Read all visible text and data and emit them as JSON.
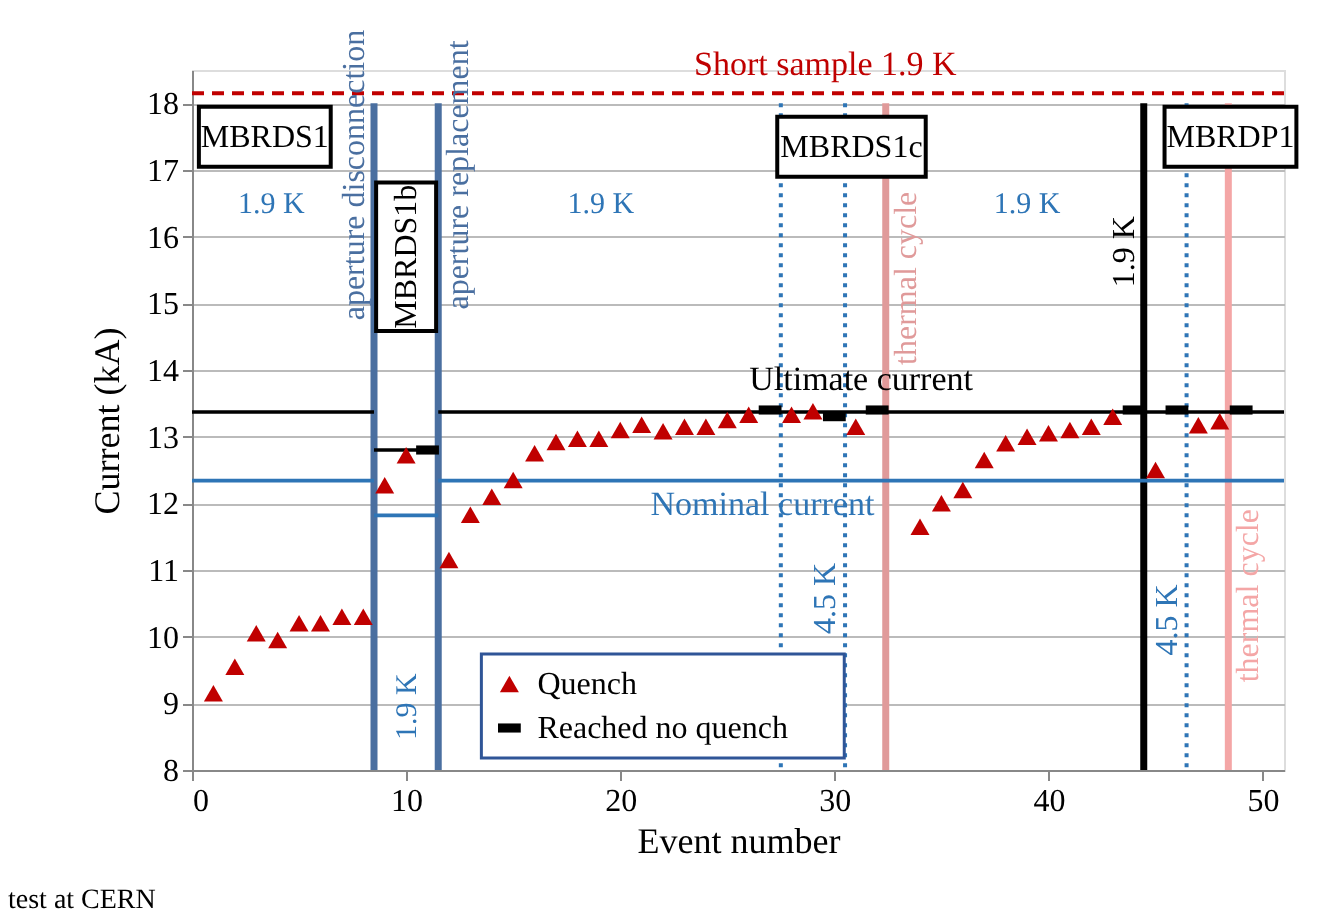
{
  "chart_data": {
    "type": "scatter",
    "xlabel": "Event number",
    "ylabel": "Current (kA)",
    "xlim": [
      0,
      51
    ],
    "ylim": [
      8,
      18.5
    ],
    "xticks": [
      0,
      10,
      20,
      30,
      40,
      50
    ],
    "yticks": [
      8,
      9,
      10,
      11,
      12,
      13,
      14,
      15,
      16,
      17,
      18
    ],
    "grid": "y",
    "legend": "bottom",
    "series": [
      {
        "name": "Ultimate current",
        "type": "line",
        "color": "#000000",
        "x": [
          0,
          8.5,
          10,
          11.5,
          51
        ],
        "values": [
          13.37,
          13.37,
          null,
          13.37,
          13.37
        ]
      },
      {
        "type": "line",
        "color": "#000000",
        "x": [
          8.5,
          11.5
        ],
        "values": [
          12.8,
          12.8
        ]
      },
      {
        "name": "Nominal current",
        "type": "line",
        "color": "#2e75b6",
        "x": [
          0,
          8.5,
          10,
          11.5,
          51
        ],
        "values": [
          12.34,
          12.34,
          null,
          12.34,
          12.34
        ]
      },
      {
        "type": "line",
        "color": "#2e75b6",
        "x": [
          8.5,
          11.5
        ],
        "values": [
          11.82,
          11.82
        ]
      },
      {
        "name": "Quench",
        "marker": "triangle",
        "color": "#c00000",
        "x": [
          1,
          2,
          3,
          4,
          5,
          6,
          7,
          8,
          9,
          10,
          12,
          13,
          14,
          15,
          16,
          17,
          18,
          19,
          20,
          21,
          22,
          23,
          24,
          25,
          26,
          28,
          29,
          31,
          34,
          35,
          36,
          37,
          38,
          39,
          40,
          41,
          42,
          43,
          45,
          47,
          48
        ],
        "values": [
          9.15,
          9.55,
          10.05,
          9.95,
          10.2,
          10.2,
          10.3,
          10.3,
          12.27,
          12.72,
          11.15,
          11.83,
          12.1,
          12.35,
          12.75,
          12.92,
          12.97,
          12.97,
          13.1,
          13.18,
          13.08,
          13.15,
          13.15,
          13.25,
          13.33,
          13.33,
          13.38,
          13.15,
          11.65,
          12.0,
          12.2,
          12.65,
          12.9,
          13.0,
          13.05,
          13.1,
          13.15,
          13.3,
          12.5,
          13.17,
          13.23
        ]
      },
      {
        "name": "Reached no quench",
        "color": "#000000",
        "x": [
          11,
          27,
          30,
          32,
          44,
          46,
          49
        ],
        "values": [
          12.8,
          13.4,
          13.3,
          13.4,
          13.4,
          13.4,
          13.4
        ]
      }
    ],
    "ref_lines": [
      {
        "axis": "y",
        "value": 18.15,
        "label": "Short sample 1.9 K",
        "color": "#c00000",
        "line_style": "dashed"
      },
      {
        "axis": "x",
        "value": 8.5,
        "label": "aperture disconnection",
        "color": "#4a6fa0",
        "line_style": "solid"
      },
      {
        "axis": "x",
        "value": 11.5,
        "label": "aperture replacement",
        "color": "#4a6fa0",
        "line_style": "solid"
      },
      {
        "axis": "x",
        "value": 27.5,
        "color": "#2e75b6",
        "line_style": "dotted"
      },
      {
        "axis": "x",
        "value": 30.5,
        "label": "4.5 K",
        "color": "#2e75b6",
        "line_style": "dotted"
      },
      {
        "axis": "x",
        "value": 32.4,
        "label": "thermal cycle",
        "color": "#e09a9a",
        "line_style": "solid"
      },
      {
        "axis": "x",
        "value": 44.45,
        "label": "1.9 K",
        "color": "#000000",
        "line_style": "solid"
      },
      {
        "axis": "x",
        "value": 46.45,
        "label": "4.5 K",
        "color": "#2e75b6",
        "line_style": "dotted"
      },
      {
        "axis": "x",
        "value": 48.4,
        "label": "thermal cycle",
        "color": "#f4a6a6",
        "line_style": "solid"
      }
    ],
    "annotations": [
      "test at CERN",
      "MBRDS1",
      "MBRDS1b",
      "MBRDS1c",
      "MBRDP1",
      "1.9 K",
      "1.9 K",
      "1.9 K",
      "1.9 K"
    ]
  }
}
